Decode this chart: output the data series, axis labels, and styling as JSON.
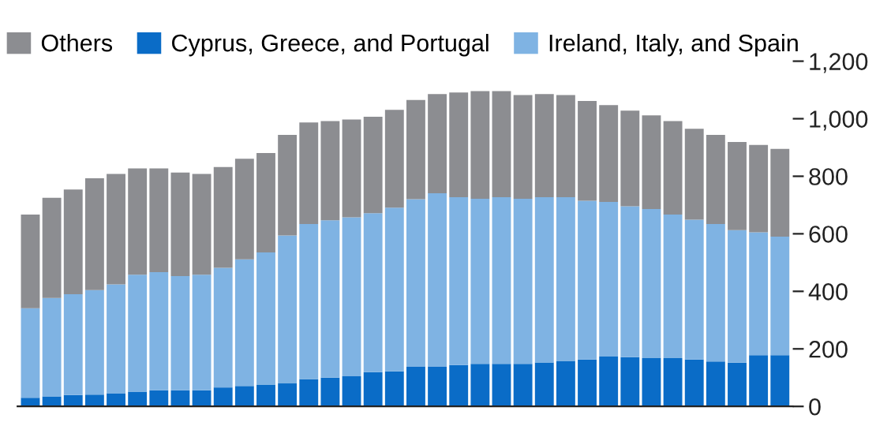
{
  "chart_data": {
    "type": "bar",
    "stacked": true,
    "categories": [
      null,
      null,
      null,
      null,
      null,
      null,
      null,
      null,
      null,
      null,
      null,
      null,
      null,
      null,
      null,
      null,
      null,
      null,
      null,
      null,
      null,
      null,
      null,
      null,
      null,
      null,
      null,
      null,
      null,
      null,
      null,
      null,
      null,
      null,
      null,
      null
    ],
    "series": [
      {
        "name": "Cyprus, Greece, and Portugal",
        "color": "#0a6cc7",
        "values": [
          30,
          35,
          40,
          41,
          46,
          51,
          56,
          56,
          56,
          66,
          71,
          76,
          80,
          95,
          100,
          105,
          119,
          122,
          139,
          139,
          144,
          148,
          148,
          148,
          153,
          158,
          163,
          173,
          171,
          168,
          168,
          163,
          156,
          152,
          178,
          178
        ]
      },
      {
        "name": "Ireland, Italy, and Spain",
        "color": "#7fb3e3",
        "values": [
          311,
          342,
          350,
          363,
          378,
          407,
          411,
          397,
          402,
          416,
          440,
          459,
          514,
          539,
          547,
          552,
          553,
          569,
          581,
          602,
          583,
          574,
          579,
          574,
          574,
          569,
          552,
          538,
          525,
          518,
          499,
          486,
          478,
          461,
          427,
          412
        ]
      },
      {
        "name": "Others",
        "color": "#8c8d91",
        "values": [
          326,
          348,
          364,
          389,
          384,
          369,
          360,
          360,
          350,
          350,
          350,
          346,
          350,
          353,
          345,
          340,
          335,
          340,
          345,
          345,
          364,
          374,
          369,
          360,
          359,
          355,
          347,
          336,
          332,
          326,
          325,
          316,
          310,
          306,
          304,
          305
        ]
      }
    ],
    "ylim": [
      0,
      1200
    ],
    "yticks": [
      0,
      200,
      400,
      600,
      800,
      {
        "value": 1000,
        "label": "1,000"
      },
      {
        "value": 1200,
        "label": "1,200"
      }
    ],
    "legend": "top left",
    "grid": false
  }
}
